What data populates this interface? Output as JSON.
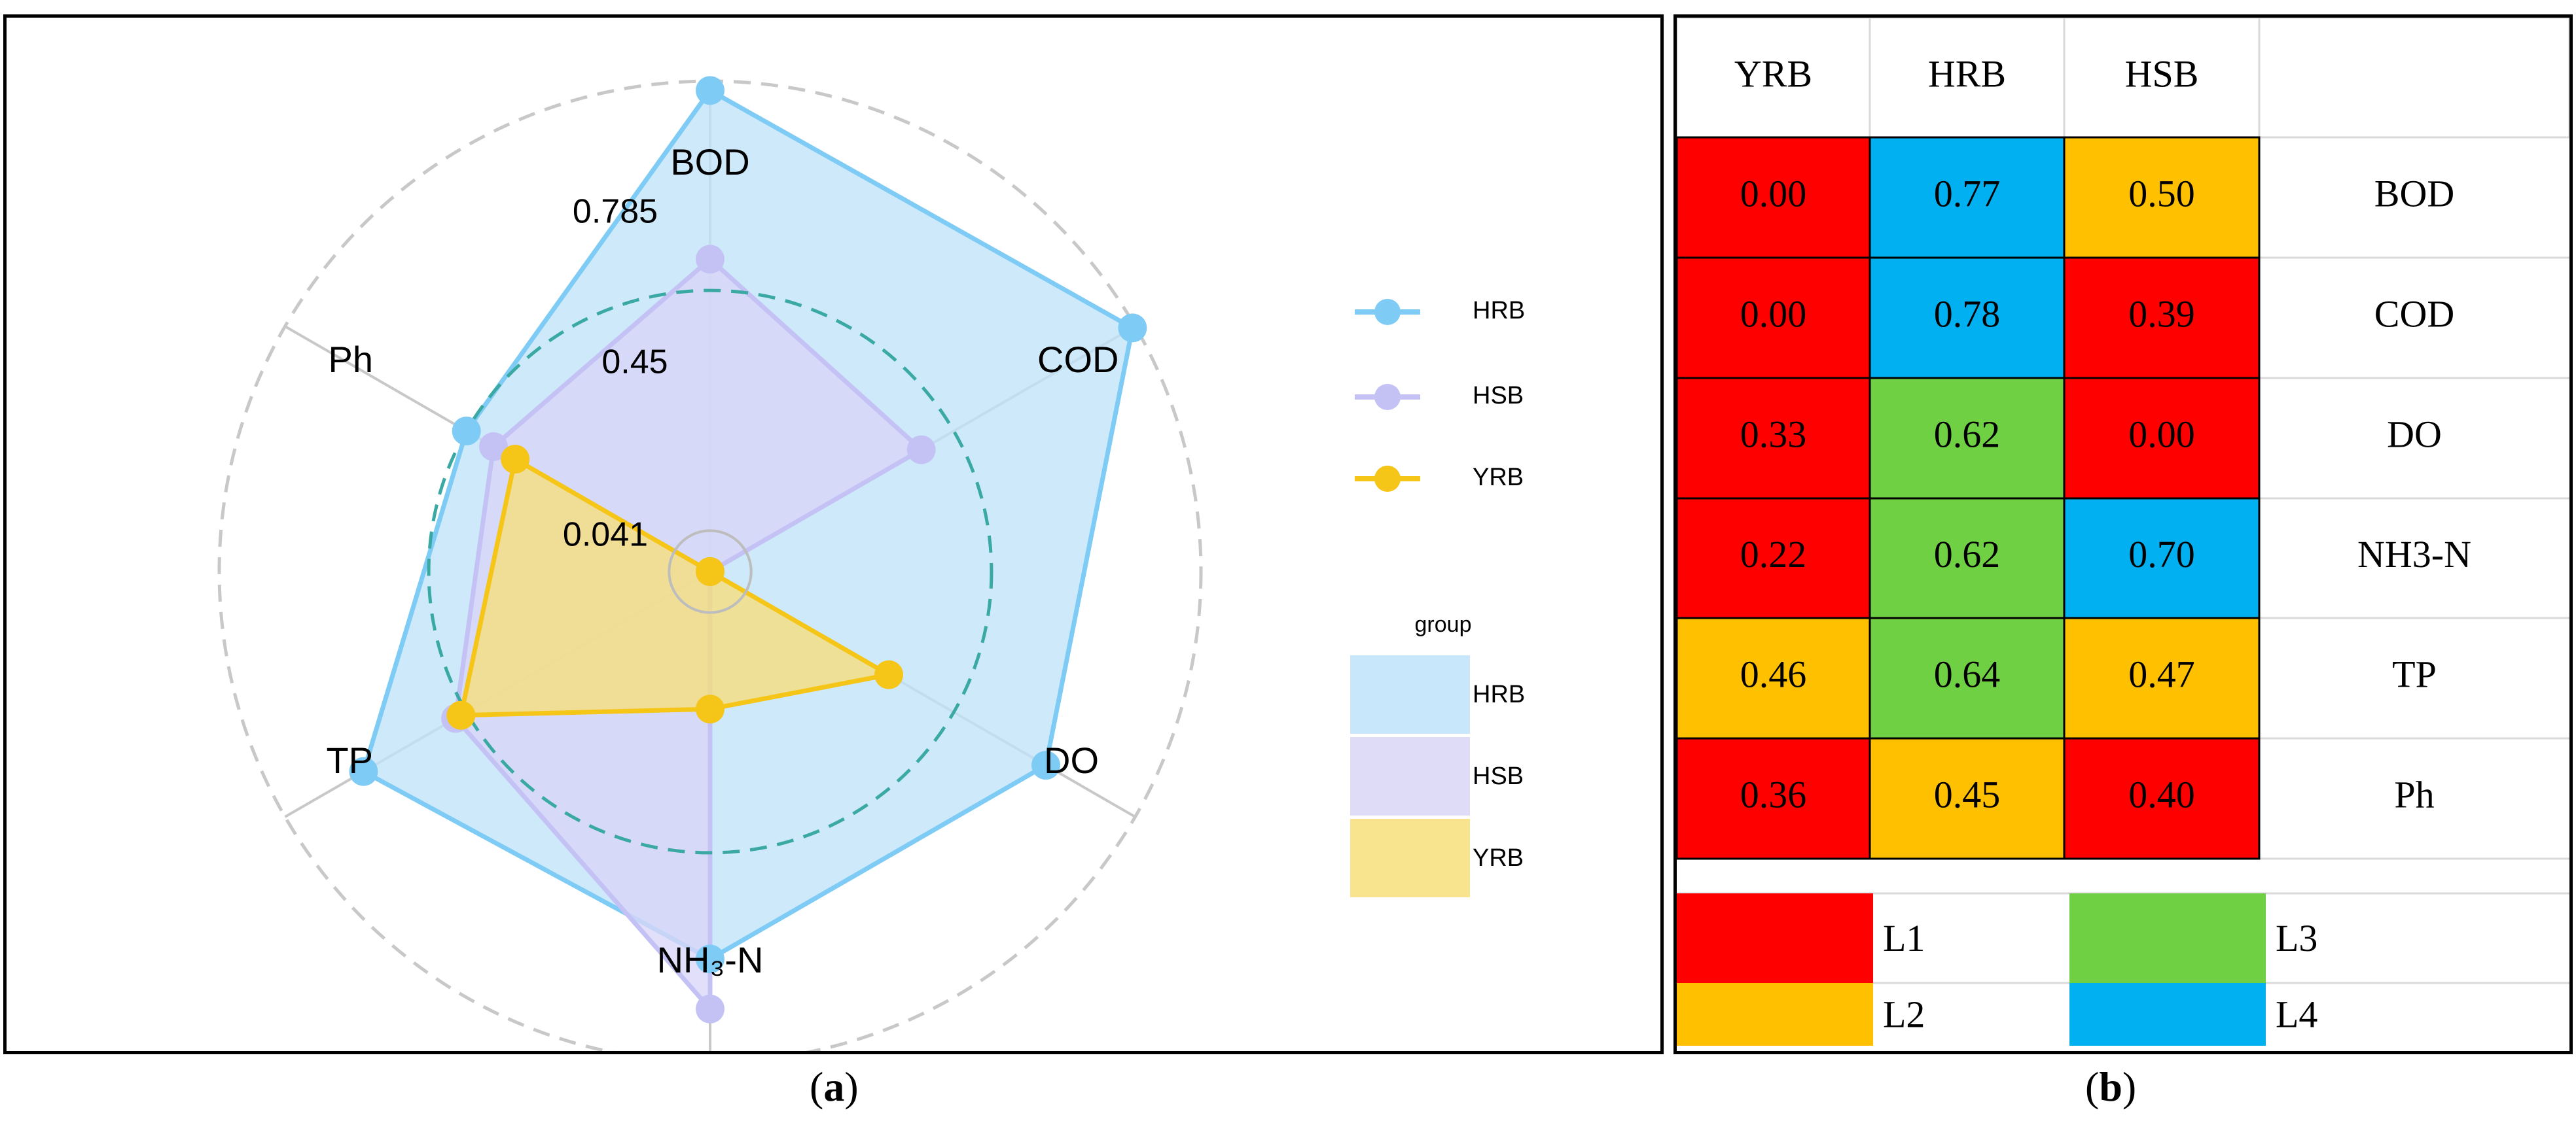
{
  "captions": {
    "a": "a",
    "b": "b"
  },
  "chart_data": [
    {
      "type": "radar",
      "axes": [
        "BOD",
        "COD",
        "DO",
        "NH₃-N",
        "TP",
        "Ph"
      ],
      "rlim": [
        0,
        0.785
      ],
      "grid_labels": [
        "0.041",
        "0.45",
        "0.785"
      ],
      "series": [
        {
          "name": "HRB",
          "values": [
            0.77,
            0.78,
            0.62,
            0.62,
            0.64,
            0.45
          ],
          "color": "#7ecbf5",
          "fill": "#bfe3f9"
        },
        {
          "name": "HSB",
          "values": [
            0.5,
            0.39,
            0.0,
            0.7,
            0.47,
            0.4
          ],
          "color": "#c4c2f5",
          "fill": "#d9d6f7"
        },
        {
          "name": "YRB",
          "values": [
            0.0,
            0.0,
            0.33,
            0.22,
            0.46,
            0.36
          ],
          "color": "#f5c518",
          "fill": "#f7de7a"
        }
      ],
      "legend": {
        "position": "right",
        "fill_title": "group"
      }
    },
    {
      "type": "table",
      "columns": [
        "YRB",
        "HRB",
        "HSB",
        ""
      ],
      "rows": [
        {
          "label": "BOD",
          "values": [
            "0.00",
            "0.77",
            "0.50"
          ],
          "levels": [
            "L1",
            "L4",
            "L2"
          ]
        },
        {
          "label": "COD",
          "values": [
            "0.00",
            "0.78",
            "0.39"
          ],
          "levels": [
            "L1",
            "L4",
            "L1"
          ]
        },
        {
          "label": "DO",
          "values": [
            "0.33",
            "0.62",
            "0.00"
          ],
          "levels": [
            "L1",
            "L3",
            "L1"
          ]
        },
        {
          "label": "NH3-N",
          "values": [
            "0.22",
            "0.62",
            "0.70"
          ],
          "levels": [
            "L1",
            "L3",
            "L4"
          ]
        },
        {
          "label": "TP",
          "values": [
            "0.46",
            "0.64",
            "0.47"
          ],
          "levels": [
            "L2",
            "L3",
            "L2"
          ]
        },
        {
          "label": "Ph",
          "values": [
            "0.36",
            "0.45",
            "0.40"
          ],
          "levels": [
            "L1",
            "L2",
            "L1"
          ]
        }
      ],
      "level_colors": {
        "L1": "#ff0000",
        "L2": "#ffc000",
        "L3": "#70d044",
        "L4": "#00b0f0"
      },
      "legend": [
        "L1",
        "L3",
        "L2",
        "L4"
      ]
    }
  ]
}
